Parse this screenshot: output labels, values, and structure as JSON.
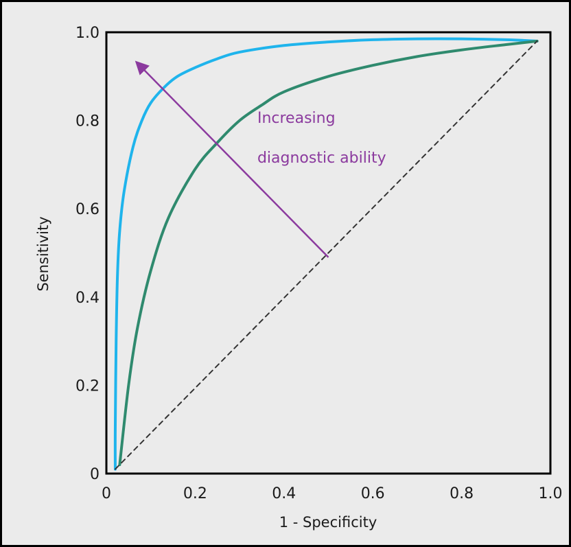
{
  "chart_data": {
    "type": "line",
    "xlabel": "1 - Specificity",
    "ylabel": "Sensitivity",
    "xlim": [
      0,
      1.0
    ],
    "ylim": [
      0,
      1.0
    ],
    "x_ticks": [
      "0",
      "0.2",
      "0.4",
      "0.6",
      "0.8",
      "1.0"
    ],
    "y_ticks": [
      "0",
      "0.2",
      "0.4",
      "0.6",
      "0.8",
      "1.0"
    ],
    "grid": false,
    "series": [
      {
        "color": "#1fb4ec",
        "x": [
          0.02,
          0.02,
          0.022,
          0.025,
          0.03,
          0.04,
          0.06,
          0.08,
          0.1,
          0.13,
          0.16,
          0.2,
          0.25,
          0.3,
          0.4,
          0.5,
          0.6,
          0.7,
          0.8,
          0.9,
          0.97
        ],
        "y": [
          0.01,
          0.1,
          0.3,
          0.45,
          0.55,
          0.64,
          0.74,
          0.8,
          0.84,
          0.875,
          0.9,
          0.92,
          0.94,
          0.955,
          0.97,
          0.978,
          0.983,
          0.985,
          0.985,
          0.983,
          0.98
        ]
      },
      {
        "color": "#2f8a6e",
        "x": [
          0.03,
          0.05,
          0.07,
          0.1,
          0.14,
          0.2,
          0.25,
          0.3,
          0.35,
          0.4,
          0.5,
          0.6,
          0.7,
          0.8,
          0.9,
          0.97
        ],
        "y": [
          0.02,
          0.2,
          0.33,
          0.46,
          0.58,
          0.69,
          0.75,
          0.8,
          0.835,
          0.865,
          0.9,
          0.925,
          0.945,
          0.96,
          0.972,
          0.98
        ]
      },
      {
        "color": "#333333",
        "style": "dashed",
        "x": [
          0.02,
          0.97
        ],
        "y": [
          0.01,
          0.98
        ]
      }
    ],
    "annotations": [
      {
        "text_lines": [
          "Increasing",
          "diagnostic ability"
        ],
        "color": "#8b3a9e",
        "arrow_from": [
          0.5,
          0.49
        ],
        "arrow_to": [
          0.07,
          0.93
        ],
        "text_anchor": [
          0.34,
          0.795
        ]
      }
    ]
  }
}
